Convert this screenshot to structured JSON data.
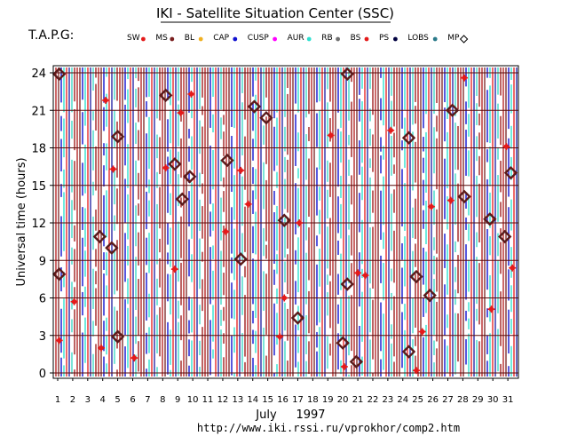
{
  "page": {
    "title": "IKI - Satellite Situation Center (SSC)",
    "label_left": "T.A.P.G:",
    "footer_url": "http://www.iki.rssi.ru/vprokhor/comp2.htm"
  },
  "chart_data": {
    "type": "scatter",
    "title": "IKI - Satellite Situation Center (SSC)",
    "xlabel_month": "July",
    "xlabel_year": "1997",
    "ylabel": "Universal time (hours)",
    "xlim": [
      1,
      32
    ],
    "ylim": [
      0,
      24
    ],
    "x_ticks": [
      1,
      2,
      3,
      4,
      5,
      6,
      7,
      8,
      9,
      10,
      11,
      12,
      13,
      14,
      15,
      16,
      17,
      18,
      19,
      20,
      21,
      22,
      23,
      24,
      25,
      26,
      27,
      28,
      29,
      30,
      31
    ],
    "y_ticks": [
      0,
      3,
      6,
      9,
      12,
      15,
      18,
      21,
      24
    ],
    "grid": true,
    "legend": [
      {
        "name": "SW",
        "color": "#e41a1a",
        "symbol": "dot"
      },
      {
        "name": "MS",
        "color": "#7a2020",
        "symbol": "dot"
      },
      {
        "name": "BL",
        "color": "#f0b020",
        "symbol": "dot"
      },
      {
        "name": "CAP",
        "color": "#1010d0",
        "symbol": "dot"
      },
      {
        "name": "CUSP",
        "color": "#ff00ff",
        "symbol": "dot"
      },
      {
        "name": "AUR",
        "color": "#30e0d0",
        "symbol": "dot"
      },
      {
        "name": "RB",
        "color": "#707070",
        "symbol": "dot"
      },
      {
        "name": "BS",
        "color": "#e41a1a",
        "symbol": "dot"
      },
      {
        "name": "PS",
        "color": "#000040",
        "symbol": "dot"
      },
      {
        "name": "LOBS",
        "color": "#2a7a8a",
        "symbol": "dot"
      },
      {
        "name": "MP",
        "color": "#000000",
        "symbol": "diamond"
      }
    ],
    "series": [
      {
        "name": "BS",
        "color": "#e41a1a",
        "marker": "star",
        "points": [
          [
            1.1,
            2.6
          ],
          [
            2.1,
            5.7
          ],
          [
            3.9,
            2.0
          ],
          [
            4.2,
            21.8
          ],
          [
            4.7,
            16.3
          ],
          [
            6.1,
            1.2
          ],
          [
            8.2,
            16.4
          ],
          [
            8.8,
            8.3
          ],
          [
            9.2,
            20.8
          ],
          [
            9.9,
            22.3
          ],
          [
            12.2,
            11.3
          ],
          [
            13.2,
            16.2
          ],
          [
            13.7,
            13.5
          ],
          [
            15.8,
            2.9
          ],
          [
            16.1,
            6.0
          ],
          [
            17.1,
            12.0
          ],
          [
            19.2,
            19.0
          ],
          [
            20.1,
            0.5
          ],
          [
            21.0,
            8.0
          ],
          [
            21.5,
            7.8
          ],
          [
            23.2,
            19.4
          ],
          [
            24.9,
            0.2
          ],
          [
            25.3,
            3.3
          ],
          [
            25.9,
            13.3
          ],
          [
            27.2,
            13.8
          ],
          [
            28.1,
            23.6
          ],
          [
            29.9,
            5.1
          ],
          [
            30.9,
            18.1
          ],
          [
            31.3,
            8.4
          ]
        ]
      },
      {
        "name": "MP",
        "color": "#5a1a1a",
        "marker": "diamond",
        "points": [
          [
            1.1,
            23.9
          ],
          [
            1.1,
            7.9
          ],
          [
            3.8,
            10.9
          ],
          [
            4.6,
            10.0
          ],
          [
            5.0,
            18.9
          ],
          [
            5.0,
            2.9
          ],
          [
            8.2,
            22.2
          ],
          [
            8.8,
            16.7
          ],
          [
            9.3,
            13.9
          ],
          [
            9.8,
            15.7
          ],
          [
            12.3,
            17.0
          ],
          [
            13.2,
            9.1
          ],
          [
            14.1,
            21.3
          ],
          [
            14.9,
            20.4
          ],
          [
            16.1,
            12.2
          ],
          [
            17.0,
            4.4
          ],
          [
            20.0,
            2.4
          ],
          [
            20.3,
            23.9
          ],
          [
            20.3,
            7.1
          ],
          [
            20.9,
            0.9
          ],
          [
            24.4,
            1.7
          ],
          [
            24.4,
            18.8
          ],
          [
            24.9,
            7.7
          ],
          [
            25.8,
            6.2
          ],
          [
            27.3,
            21.0
          ],
          [
            28.1,
            14.1
          ],
          [
            29.8,
            12.3
          ],
          [
            30.8,
            10.9
          ],
          [
            31.2,
            16.0
          ]
        ]
      }
    ]
  }
}
